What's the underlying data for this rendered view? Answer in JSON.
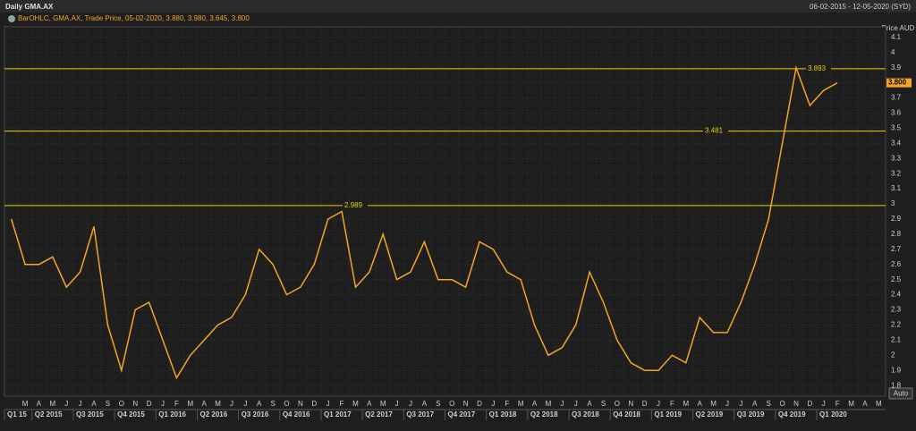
{
  "header": {
    "title": "Daily GMA.AX",
    "range": "06-02-2015 - 12-05-2020 (SYD)"
  },
  "chart_data": {
    "type": "line",
    "legend": "BarOHLC, GMA.AX, Trade Price, 05-02-2020, 3.880, 3.980, 3.645, 3.800",
    "y_label": "Price AUD",
    "categories": [
      null,
      "M",
      "A",
      "M",
      "J",
      "J",
      "A",
      "S",
      "O",
      "N",
      "D",
      "J",
      "F",
      "M",
      "A",
      "M",
      "J",
      "J",
      "A",
      "S",
      "O",
      "N",
      "D",
      "J",
      "F",
      "M",
      "A",
      "M",
      "J",
      "J",
      "A",
      "S",
      "O",
      "N",
      "D",
      "J",
      "F",
      "M",
      "A",
      "M",
      "J",
      "J",
      "A",
      "S",
      "O",
      "N",
      "D",
      "J",
      "F",
      "M",
      "A",
      "M",
      "J",
      "J",
      "A",
      "S",
      "O",
      "N",
      "D",
      "J",
      "F",
      "M",
      "A",
      "M"
    ],
    "quarters": [
      "Q1 15",
      "Q2 2015",
      "Q3 2015",
      "Q4 2015",
      "Q1 2016",
      "Q2 2016",
      "Q3 2016",
      "Q4 2016",
      "Q1 2017",
      "Q2 2017",
      "Q3 2017",
      "Q4 2017",
      "Q1 2018",
      "Q2 2018",
      "Q3 2018",
      "Q4 2018",
      "Q1 2019",
      "Q2 2019",
      "Q3 2019",
      "Q4 2019",
      "Q1 2020"
    ],
    "series": [
      {
        "name": "GMA.AX",
        "color": "#f5a623",
        "values": [
          2.9,
          2.6,
          2.6,
          2.65,
          2.45,
          2.55,
          2.85,
          2.2,
          1.9,
          2.3,
          2.35,
          2.1,
          1.85,
          2.0,
          2.1,
          2.2,
          2.25,
          2.4,
          2.7,
          2.6,
          2.4,
          2.45,
          2.6,
          2.9,
          2.95,
          2.45,
          2.55,
          2.8,
          2.5,
          2.55,
          2.75,
          2.5,
          2.5,
          2.45,
          2.75,
          2.7,
          2.55,
          2.5,
          2.2,
          2.0,
          2.05,
          2.2,
          2.55,
          2.35,
          2.1,
          1.95,
          1.9,
          1.9,
          2.0,
          1.95,
          2.25,
          2.15,
          2.15,
          2.35,
          2.6,
          2.9,
          3.4,
          3.9,
          3.65,
          3.75,
          3.8,
          null,
          null,
          null
        ]
      }
    ],
    "levels": [
      2.989,
      3.481,
      3.893
    ],
    "last_price": 3.8,
    "last_price_label": "3.800",
    "ylim": [
      1.73,
      4.17
    ],
    "yticks": [
      1.8,
      1.9,
      {
        "value": 2,
        "label": "2"
      },
      2.1,
      2.2,
      2.3,
      2.4,
      2.5,
      2.6,
      2.7,
      2.8,
      2.9,
      {
        "value": 3,
        "label": "3"
      },
      3.1,
      3.2,
      3.3,
      3.4,
      3.5,
      3.6,
      3.7,
      3.8,
      3.9,
      {
        "value": 4,
        "label": "4"
      },
      4.1
    ],
    "grid": true,
    "button": "Auto"
  }
}
